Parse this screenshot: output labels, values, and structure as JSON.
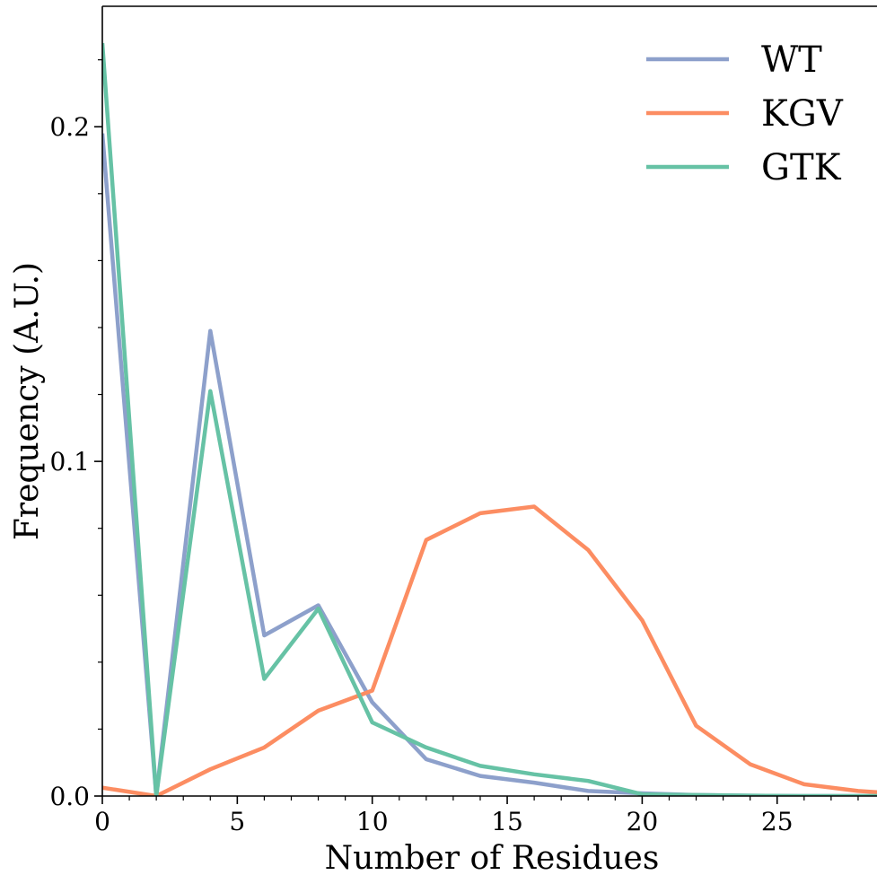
{
  "chart_data": {
    "type": "line",
    "xlabel": "Number of Residues",
    "ylabel": "Frequency (A.U.)",
    "xlim": [
      0,
      28.7
    ],
    "ylim": [
      0,
      0.236
    ],
    "xticks": [
      0,
      5,
      10,
      15,
      20,
      25
    ],
    "yticks": [
      0.0,
      0.1,
      0.2
    ],
    "xtick_labels": [
      "0",
      "5",
      "10",
      "15",
      "20",
      "25"
    ],
    "ytick_labels": [
      "0.0",
      "0.1",
      "0.2"
    ],
    "grid": false,
    "legend_position": "top-right",
    "x": [
      0,
      2,
      4,
      6,
      8,
      10,
      12,
      14,
      16,
      18,
      20,
      22,
      24,
      26,
      28,
      30
    ],
    "series": [
      {
        "name": "WT",
        "color": "#8da0cb",
        "values": [
          0.198,
          0.0,
          0.139,
          0.048,
          0.057,
          0.028,
          0.011,
          0.006,
          0.004,
          0.0015,
          0.0008,
          0.0003,
          0.0001,
          0.0,
          0.0,
          0.0
        ]
      },
      {
        "name": "KGV",
        "color": "#fc8d62",
        "values": [
          0.0025,
          0.0,
          0.008,
          0.0145,
          0.0255,
          0.0315,
          0.0765,
          0.0845,
          0.0865,
          0.0735,
          0.0525,
          0.021,
          0.0095,
          0.0035,
          0.0015,
          0.0005
        ]
      },
      {
        "name": "GTK",
        "color": "#66c2a5",
        "values": [
          0.225,
          0.0,
          0.121,
          0.035,
          0.056,
          0.022,
          0.0145,
          0.009,
          0.0065,
          0.0045,
          0.0005,
          0.0003,
          0.0001,
          0.0,
          0.0,
          0.0
        ]
      }
    ]
  }
}
